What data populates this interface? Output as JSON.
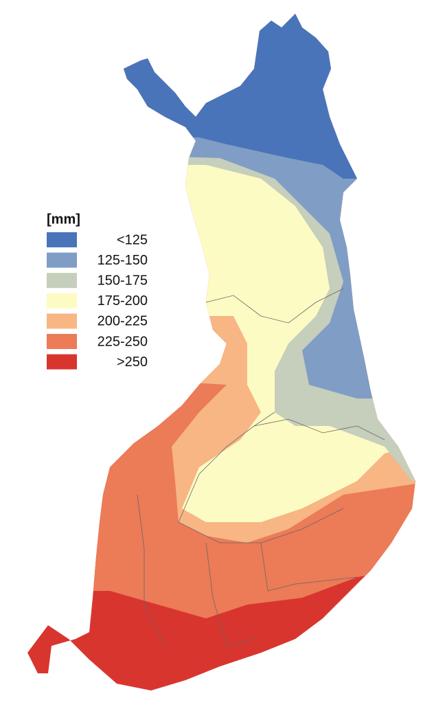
{
  "legend": {
    "title": "[mm]",
    "items": [
      {
        "label": "<125",
        "color": "#4a74b9"
      },
      {
        "label": "125-150",
        "color": "#809dc5"
      },
      {
        "label": "150-175",
        "color": "#c6cebc"
      },
      {
        "label": "175-200",
        "color": "#fdfbc4"
      },
      {
        "label": "200-225",
        "color": "#f7b684"
      },
      {
        "label": "225-250",
        "color": "#ec7b57"
      },
      {
        "label": ">250",
        "color": "#d9352f"
      }
    ]
  }
}
